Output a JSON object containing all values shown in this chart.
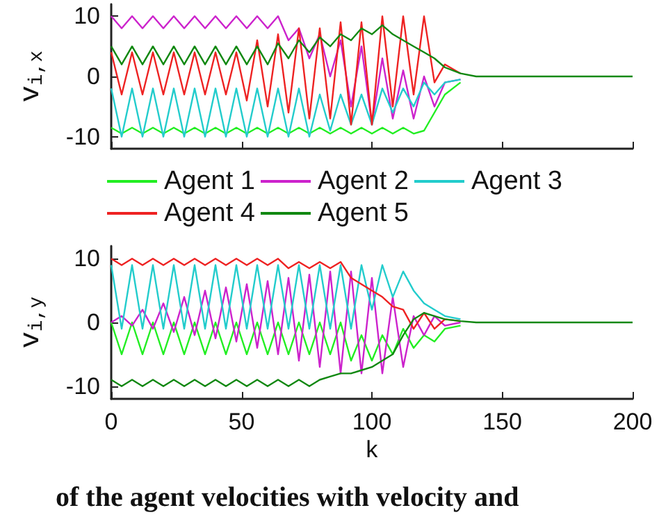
{
  "chart_data": [
    {
      "type": "line",
      "ylabel": "v$_{i,x}$",
      "x": [
        0,
        4,
        8,
        12,
        16,
        20,
        24,
        28,
        32,
        36,
        40,
        44,
        48,
        52,
        56,
        60,
        64,
        68,
        72,
        76,
        80,
        84,
        88,
        92,
        96,
        100,
        104,
        108,
        112,
        116,
        120,
        124,
        128,
        134,
        140,
        150,
        200
      ],
      "xlim": [
        0,
        200
      ],
      "xticks": [
        0,
        50,
        100,
        150,
        200
      ],
      "ylim": [
        -12,
        12
      ],
      "yticks": [
        -10,
        0,
        10
      ],
      "tick_labels": "y",
      "grid": false,
      "legend": "bottom",
      "marker": "none",
      "line_style": "solid",
      "series": [
        {
          "name": "Agent 1",
          "color": "#22ee22",
          "values": [
            -8.5,
            -9.5,
            -8.5,
            -9.5,
            -8.5,
            -9.5,
            -8.5,
            -9.5,
            -8.5,
            -9.5,
            -8.5,
            -9.5,
            -8.5,
            -9.5,
            -8.5,
            -9.5,
            -8.5,
            -9.5,
            -8.5,
            -9.5,
            -8.5,
            -9.5,
            -8.5,
            -9.5,
            -8.5,
            -9.5,
            -8.5,
            -9.5,
            -8.5,
            -9.5,
            -9,
            -6,
            -3,
            -1,
            null,
            null,
            null
          ]
        },
        {
          "name": "Agent 2",
          "color": "#cc22cc",
          "values": [
            10,
            8,
            10,
            8,
            10,
            8,
            10,
            8,
            10,
            8,
            10,
            8,
            10,
            8,
            10,
            8,
            10,
            6,
            8,
            3,
            7,
            0,
            6,
            -5,
            5,
            -8,
            3,
            -7,
            1,
            -7,
            0,
            -5,
            -1,
            -0.5,
            null,
            null,
            null
          ]
        },
        {
          "name": "Agent 3",
          "color": "#22cccc",
          "values": [
            -2,
            -10,
            -2,
            -10,
            -2,
            -10,
            -2,
            -10,
            -2,
            -10,
            -2,
            -10,
            -2,
            -10,
            -2,
            -10,
            -2,
            -10,
            -2,
            -10,
            -3,
            -9,
            -3,
            -8,
            -3,
            -8,
            -2,
            -6,
            -2,
            -5,
            -1,
            -3,
            -1,
            -0.5,
            null,
            null,
            null
          ]
        },
        {
          "name": "Agent 4",
          "color": "#ee2222",
          "values": [
            4,
            -3,
            4,
            -3,
            4,
            -3,
            4,
            -3,
            4,
            -3,
            4,
            -3,
            4,
            -4,
            6,
            -5,
            7,
            -6,
            8,
            -7,
            8,
            -7,
            9,
            -8,
            9,
            -8,
            10,
            -5,
            10,
            -3,
            10,
            -1,
            2,
            0.5,
            null,
            null,
            null
          ]
        },
        {
          "name": "Agent 5",
          "color": "#118811",
          "values": [
            5,
            2,
            5,
            2,
            5,
            2,
            5,
            2,
            5,
            2,
            5,
            2,
            5,
            2,
            5,
            2,
            5.5,
            3,
            6,
            4,
            6.5,
            5,
            7,
            6,
            8,
            7,
            8.5,
            7,
            6,
            5,
            4,
            3,
            1.5,
            0.5,
            0,
            0,
            0
          ]
        }
      ]
    },
    {
      "type": "line",
      "ylabel": "v$_{i,y}$",
      "xlabel": "k",
      "x": [
        0,
        4,
        8,
        12,
        16,
        20,
        24,
        28,
        32,
        36,
        40,
        44,
        48,
        52,
        56,
        60,
        64,
        68,
        72,
        76,
        80,
        84,
        88,
        92,
        96,
        100,
        104,
        108,
        112,
        116,
        120,
        124,
        128,
        134,
        140,
        150,
        200
      ],
      "xlim": [
        0,
        200
      ],
      "xticks": [
        0,
        50,
        100,
        150,
        200
      ],
      "ylim": [
        -12,
        12
      ],
      "yticks": [
        -10,
        0,
        10
      ],
      "grid": false,
      "marker": "none",
      "line_style": "solid",
      "annotations": [
        "of the agent velocities with velocity and"
      ],
      "series": [
        {
          "color": "#22ee22",
          "values": [
            0,
            -5,
            0,
            -5,
            0,
            -5,
            0,
            -5,
            0,
            -5,
            0,
            -5,
            0,
            -5,
            0,
            -5,
            0,
            -5,
            0,
            -5,
            0,
            -5,
            0,
            -6,
            -2,
            -6,
            -2,
            -5,
            -1,
            -4,
            -2,
            -3,
            -1,
            -0.5,
            null,
            null,
            null
          ]
        },
        {
          "color": "#cc22cc",
          "values": [
            0,
            1,
            -0.5,
            2,
            -1,
            3,
            -1.5,
            4,
            -2,
            5,
            -2.5,
            5.5,
            -3,
            6,
            -4,
            6.5,
            -5,
            7,
            -6,
            7.5,
            -7,
            8,
            -8,
            8,
            -8,
            7,
            -8,
            4,
            -7,
            1,
            -2,
            1,
            -0.5,
            0,
            null,
            null,
            null
          ]
        },
        {
          "color": "#22cccc",
          "values": [
            9,
            -1,
            9,
            -1,
            9,
            -1,
            9,
            -1,
            9,
            -1,
            9,
            -1,
            9,
            -1,
            9,
            -1,
            9,
            -1,
            9,
            -1,
            9,
            -1,
            9,
            -1,
            9,
            2,
            9,
            4,
            8,
            5,
            3,
            2,
            1,
            0.5,
            null,
            null,
            null
          ]
        },
        {
          "color": "#ee2222",
          "values": [
            10,
            9,
            10,
            9,
            10,
            9,
            10,
            9,
            10,
            9,
            10,
            9,
            10,
            9,
            10,
            9,
            10,
            8.5,
            9.5,
            8.5,
            9.5,
            8.5,
            9.5,
            7,
            6,
            5,
            4,
            2.5,
            2,
            -1,
            1.5,
            -1,
            0.5,
            0.2,
            null,
            null,
            null
          ]
        },
        {
          "color": "#118811",
          "values": [
            -9,
            -10,
            -9,
            -10,
            -9,
            -10,
            -9,
            -10,
            -9,
            -10,
            -9,
            -10,
            -9,
            -10,
            -9,
            -10,
            -9,
            -10,
            -9,
            -10,
            -9,
            -8.5,
            -8,
            -8,
            -7.5,
            -7,
            -6,
            -5,
            -2,
            0.5,
            1.5,
            1,
            0.5,
            0.2,
            0,
            0,
            0
          ]
        }
      ]
    }
  ]
}
